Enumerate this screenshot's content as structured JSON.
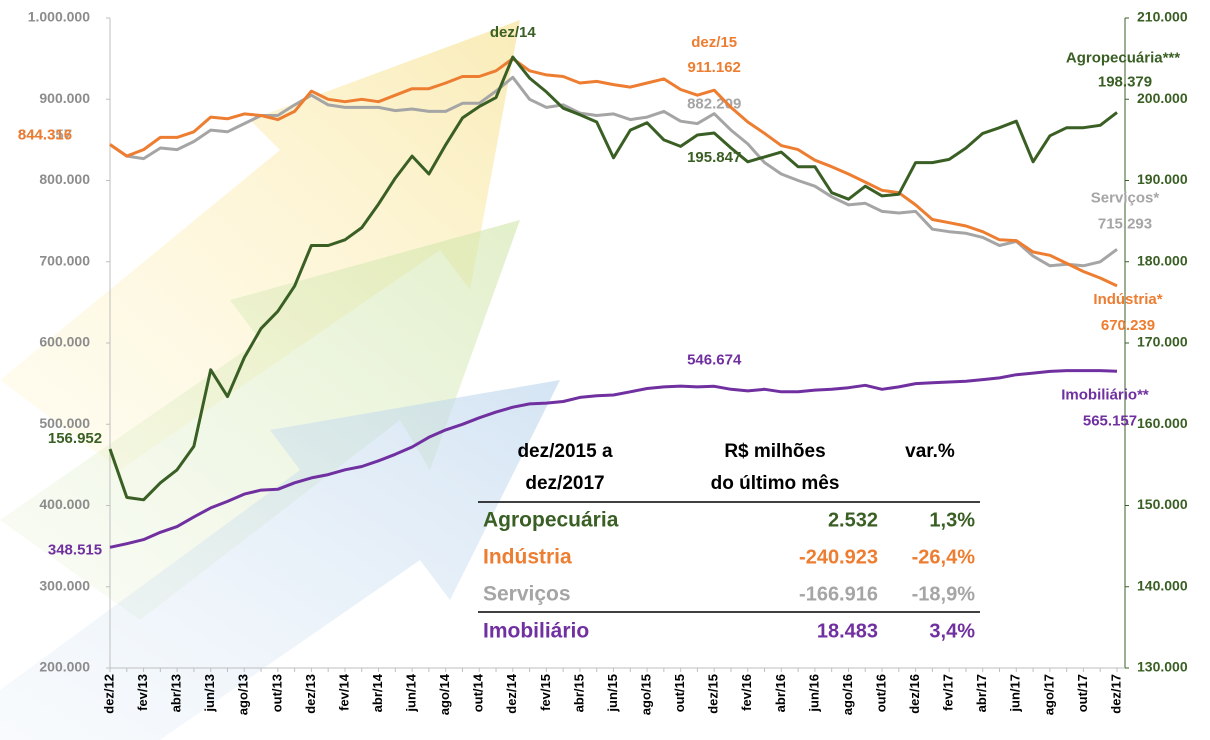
{
  "chart_data": {
    "type": "line",
    "categories": [
      "dez/12",
      null,
      "fev/13",
      null,
      "abr/13",
      null,
      "jun/13",
      null,
      "ago/13",
      null,
      "out/13",
      null,
      "dez/13",
      null,
      "fev/14",
      null,
      "abr/14",
      null,
      "jun/14",
      null,
      "ago/14",
      null,
      "out/14",
      null,
      "dez/14",
      null,
      "fev/15",
      null,
      "abr/15",
      null,
      "jun/15",
      null,
      "ago/15",
      null,
      "out/15",
      null,
      "dez/15",
      null,
      "fev/16",
      null,
      "abr/16",
      null,
      "jun/16",
      null,
      "ago/16",
      null,
      "out/16",
      null,
      "dez/16",
      null,
      "fev/17",
      null,
      "abr/17",
      null,
      "jun/17",
      null,
      "ago/17",
      null,
      "out/17",
      null,
      "dez/17"
    ],
    "ylim": [
      200000,
      1000000
    ],
    "yticks": [
      {
        "value": 200000,
        "label": "200.000"
      },
      {
        "value": 300000,
        "label": "300.000"
      },
      {
        "value": 400000,
        "label": "400.000"
      },
      {
        "value": 500000,
        "label": "500.000"
      },
      {
        "value": 600000,
        "label": "600.000"
      },
      {
        "value": 700000,
        "label": "700.000"
      },
      {
        "value": 800000,
        "label": "800.000"
      },
      {
        "value": 900000,
        "label": "900.000"
      },
      {
        "value": 1000000,
        "label": "1.000.000"
      }
    ],
    "y2lim": [
      130000,
      210000
    ],
    "y2ticks": [
      {
        "value": 130000,
        "label": "130.000"
      },
      {
        "value": 140000,
        "label": "140.000"
      },
      {
        "value": 150000,
        "label": "150.000"
      },
      {
        "value": 160000,
        "label": "160.000"
      },
      {
        "value": 170000,
        "label": "170.000"
      },
      {
        "value": 180000,
        "label": "180.000"
      },
      {
        "value": 190000,
        "label": "190.000"
      },
      {
        "value": 200000,
        "label": "200.000"
      },
      {
        "value": 210000,
        "label": "210.000"
      }
    ],
    "grid": false,
    "series": [
      {
        "name": "Agropecuária***",
        "color": "#3a5f24",
        "axis": "y2",
        "values": [
          156952,
          151000,
          150700,
          152800,
          154400,
          157300,
          166700,
          163400,
          168200,
          171800,
          173900,
          177000,
          182000,
          182000,
          182700,
          184200,
          187100,
          190300,
          193000,
          190800,
          194400,
          197700,
          199100,
          200200,
          205200,
          202600,
          200900,
          198900,
          198100,
          197200,
          192800,
          196200,
          197100,
          195000,
          194200,
          195600,
          195847,
          194000,
          192300,
          192900,
          193500,
          191700,
          191700,
          188500,
          187700,
          189300,
          188100,
          188300,
          192200,
          192200,
          192600,
          194000,
          195800,
          196500,
          197300,
          192300,
          195500,
          196500,
          196500,
          196800,
          198379
        ],
        "value_labels": [
          "156.952",
          null,
          null,
          null,
          null,
          null,
          null,
          null,
          null,
          null,
          null,
          null,
          null,
          null,
          null,
          null,
          null,
          null,
          null,
          null,
          null,
          null,
          null,
          null,
          null,
          null,
          null,
          null,
          null,
          null,
          null,
          null,
          null,
          null,
          null,
          null,
          "195.847",
          null,
          null,
          null,
          null,
          null,
          null,
          null,
          null,
          null,
          null,
          null,
          null,
          null,
          null,
          null,
          null,
          null,
          null,
          null,
          null,
          null,
          null,
          null,
          "198.379"
        ]
      },
      {
        "name": "Indústria*",
        "color": "#ed7d31",
        "values": [
          844316,
          830000,
          838000,
          853000,
          853000,
          860000,
          878000,
          876000,
          882000,
          880000,
          875000,
          885000,
          910000,
          900000,
          897000,
          900000,
          897000,
          905000,
          913000,
          913000,
          920000,
          928000,
          928000,
          935000,
          950000,
          935000,
          930000,
          928000,
          920000,
          922000,
          918000,
          915000,
          920000,
          925000,
          912000,
          905000,
          911162,
          890000,
          872000,
          858000,
          843000,
          838000,
          825000,
          817000,
          808000,
          798000,
          788000,
          785000,
          770000,
          752000,
          748000,
          744000,
          737000,
          727000,
          726000,
          712000,
          708000,
          698000,
          688000,
          680000,
          670239
        ],
        "value_labels": [
          "844.316",
          null,
          null,
          null,
          null,
          null,
          null,
          null,
          null,
          null,
          null,
          null,
          null,
          null,
          null,
          null,
          null,
          null,
          null,
          null,
          null,
          null,
          null,
          null,
          null,
          null,
          null,
          null,
          null,
          null,
          null,
          null,
          null,
          null,
          null,
          null,
          "911.162",
          null,
          null,
          null,
          null,
          null,
          null,
          null,
          null,
          null,
          null,
          null,
          null,
          null,
          null,
          null,
          null,
          null,
          null,
          null,
          null,
          null,
          null,
          null,
          "670.239"
        ]
      },
      {
        "name": "Serviços*",
        "color": "#a5a5a5",
        "values": [
          844357,
          830000,
          827000,
          840000,
          838000,
          848000,
          862000,
          860000,
          870000,
          880000,
          880000,
          893000,
          905000,
          893000,
          890000,
          890000,
          890000,
          886000,
          888000,
          885000,
          885000,
          895000,
          895000,
          910000,
          927000,
          900000,
          890000,
          893000,
          883000,
          880000,
          882000,
          875000,
          878000,
          885000,
          873000,
          870000,
          882209,
          862000,
          845000,
          822000,
          808000,
          800000,
          793000,
          780000,
          770000,
          772000,
          762000,
          760000,
          762000,
          740000,
          737000,
          735000,
          730000,
          720000,
          725000,
          707000,
          695000,
          697000,
          695000,
          700000,
          715293
        ],
        "value_labels": [
          "844.357",
          null,
          null,
          null,
          null,
          null,
          null,
          null,
          null,
          null,
          null,
          null,
          null,
          null,
          null,
          null,
          null,
          null,
          null,
          null,
          null,
          null,
          null,
          null,
          null,
          null,
          null,
          null,
          null,
          null,
          null,
          null,
          null,
          null,
          null,
          null,
          "882.209",
          null,
          null,
          null,
          null,
          null,
          null,
          null,
          null,
          null,
          null,
          null,
          null,
          null,
          null,
          null,
          null,
          null,
          null,
          null,
          null,
          null,
          null,
          null,
          "715.293"
        ]
      },
      {
        "name": "Imobiliário**",
        "color": "#7030a0",
        "values": [
          348515,
          353000,
          358000,
          367000,
          374000,
          386000,
          397000,
          405000,
          414000,
          419000,
          420000,
          428000,
          434000,
          438000,
          444000,
          448000,
          455000,
          463000,
          472000,
          484000,
          493000,
          500000,
          508000,
          515000,
          521000,
          525000,
          526000,
          528000,
          533000,
          535000,
          536000,
          540000,
          544000,
          546000,
          547000,
          546000,
          546674,
          543000,
          541000,
          543000,
          540000,
          540000,
          542000,
          543000,
          545000,
          548000,
          543000,
          546000,
          550000,
          551000,
          552000,
          553000,
          555000,
          557000,
          561000,
          563000,
          565000,
          566000,
          566000,
          566000,
          565157
        ],
        "value_labels": [
          "348.515",
          null,
          null,
          null,
          null,
          null,
          null,
          null,
          null,
          null,
          null,
          null,
          null,
          null,
          null,
          null,
          null,
          null,
          null,
          null,
          null,
          null,
          null,
          null,
          null,
          null,
          null,
          null,
          null,
          null,
          null,
          null,
          null,
          null,
          null,
          null,
          "546.674",
          null,
          null,
          null,
          null,
          null,
          null,
          null,
          null,
          null,
          null,
          null,
          null,
          null,
          null,
          null,
          null,
          null,
          null,
          null,
          null,
          null,
          null,
          null,
          "565.157"
        ]
      }
    ],
    "annotations": [
      {
        "text": "dez/14",
        "color": "#3a5f24"
      },
      {
        "text": "dez/15",
        "color": "#ed7d31"
      }
    ],
    "table": {
      "header": [
        [
          "dez/2015 a",
          "dez/2017"
        ],
        [
          "R$ milhões",
          "do último mês"
        ],
        [
          "var.%"
        ]
      ],
      "rows": [
        [
          "Agropecuária",
          "2.532",
          "1,3%"
        ],
        [
          "Indústria",
          "-240.923",
          "-26,4%"
        ],
        [
          "Serviços",
          "-166.916",
          "-18,9%"
        ],
        [
          "Imobiliário",
          "18.483",
          "3,4%"
        ]
      ]
    }
  }
}
